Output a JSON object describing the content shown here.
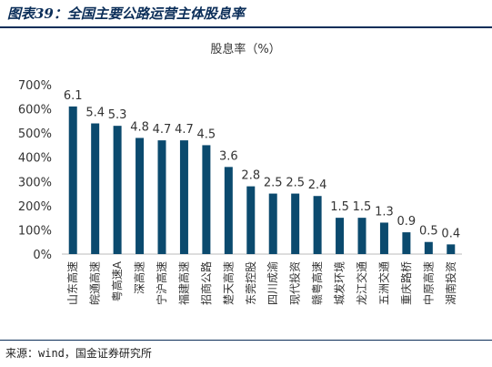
{
  "figure": {
    "title": "图表39：全国主要公路运营主体股息率",
    "source": "来源：wind，国金证券研究所"
  },
  "colors": {
    "bar": "#0b4a6e",
    "title": "#0b2e59",
    "axis": "#bbbbbb"
  },
  "chart_data": {
    "type": "bar",
    "title": "股息率（%）",
    "xlabel": "",
    "ylabel": "",
    "ylim": [
      0,
      700
    ],
    "yticks": [
      0,
      100,
      200,
      300,
      400,
      500,
      600,
      700
    ],
    "ytick_labels": [
      "0%",
      "100%",
      "200%",
      "300%",
      "400%",
      "500%",
      "600%",
      "700%"
    ],
    "grid": false,
    "legend": "none",
    "categories": [
      "山东高速",
      "皖通高速",
      "粤高速A",
      "深高速",
      "宁沪高速",
      "福建高速",
      "招商公路",
      "楚天高速",
      "东莞控股",
      "四川成渝",
      "现代投资",
      "赣粤高速",
      "城发环境",
      "龙江交通",
      "五洲交通",
      "重庆路桥",
      "中原高速",
      "湖南投资"
    ],
    "series": [
      {
        "values": [
          610,
          540,
          530,
          480,
          470,
          470,
          450,
          360,
          280,
          250,
          250,
          240,
          150,
          150,
          130,
          90,
          50,
          40
        ],
        "labels": [
          "6.1",
          "5.4",
          "5.3",
          "4.8",
          "4.7",
          "4.7",
          "4.5",
          "3.6",
          "2.8",
          "2.5",
          "2.5",
          "2.4",
          "1.5",
          "1.5",
          "1.3",
          "0.9",
          "0.5",
          "0.4"
        ]
      }
    ]
  }
}
